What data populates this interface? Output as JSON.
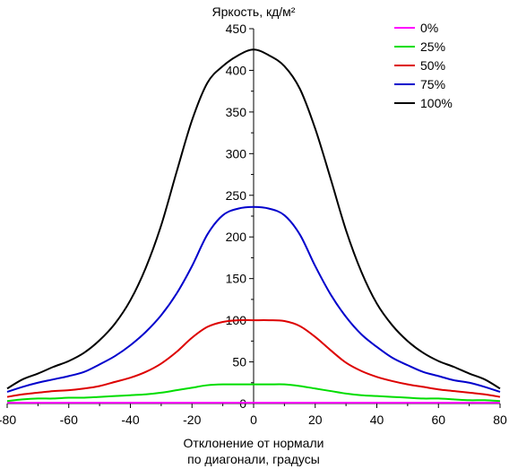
{
  "chart_data": {
    "type": "line",
    "title": "Яркость, кд/м²",
    "ylabel": "Яркость, кд/м²",
    "xlabel_line1": "Отклонение от нормали",
    "xlabel_line2": "по диагонали, градусы",
    "xlim": [
      -80,
      80
    ],
    "ylim": [
      0,
      450
    ],
    "x_ticks": [
      -80,
      -60,
      -40,
      -20,
      0,
      20,
      40,
      60,
      80
    ],
    "y_ticks": [
      0,
      50,
      100,
      150,
      200,
      250,
      300,
      350,
      400,
      450
    ],
    "grid": false,
    "legend_position": "top-right",
    "x": [
      -80,
      -75,
      -70,
      -65,
      -60,
      -55,
      -50,
      -45,
      -40,
      -35,
      -30,
      -25,
      -20,
      -15,
      -10,
      -5,
      0,
      5,
      10,
      15,
      20,
      25,
      30,
      35,
      40,
      45,
      50,
      55,
      60,
      65,
      70,
      75,
      80
    ],
    "series": [
      {
        "name": "0%",
        "color": "#ff00ff",
        "values": [
          1,
          1,
          1,
          1,
          1,
          1,
          1,
          1,
          1,
          1,
          1,
          1,
          1,
          1,
          1,
          1,
          1,
          1,
          1,
          1,
          1,
          1,
          1,
          1,
          1,
          1,
          1,
          1,
          1,
          1,
          1,
          1,
          1
        ]
      },
      {
        "name": "25%",
        "color": "#00dd00",
        "values": [
          3,
          5,
          6,
          6,
          7,
          7,
          8,
          9,
          10,
          11,
          13,
          16,
          19,
          22,
          23,
          23,
          23,
          23,
          23,
          21,
          18,
          15,
          12,
          10,
          9,
          8,
          7,
          6,
          6,
          5,
          4,
          4,
          3
        ]
      },
      {
        "name": "50%",
        "color": "#dd0000",
        "values": [
          8,
          11,
          13,
          15,
          16,
          18,
          21,
          26,
          31,
          38,
          48,
          62,
          79,
          92,
          98,
          100,
          100,
          100,
          99,
          93,
          80,
          64,
          49,
          39,
          32,
          27,
          23,
          20,
          17,
          15,
          13,
          11,
          8
        ]
      },
      {
        "name": "75%",
        "color": "#0000cc",
        "values": [
          14,
          20,
          25,
          29,
          33,
          38,
          47,
          57,
          70,
          86,
          106,
          132,
          165,
          203,
          226,
          234,
          236,
          234,
          226,
          203,
          165,
          131,
          104,
          83,
          68,
          55,
          46,
          38,
          33,
          28,
          25,
          20,
          14
        ]
      },
      {
        "name": "100%",
        "color": "#000000",
        "values": [
          18,
          29,
          36,
          44,
          51,
          61,
          76,
          96,
          124,
          163,
          214,
          278,
          340,
          385,
          405,
          418,
          425,
          418,
          405,
          378,
          330,
          270,
          208,
          158,
          120,
          94,
          75,
          61,
          51,
          44,
          36,
          29,
          18
        ]
      }
    ]
  }
}
